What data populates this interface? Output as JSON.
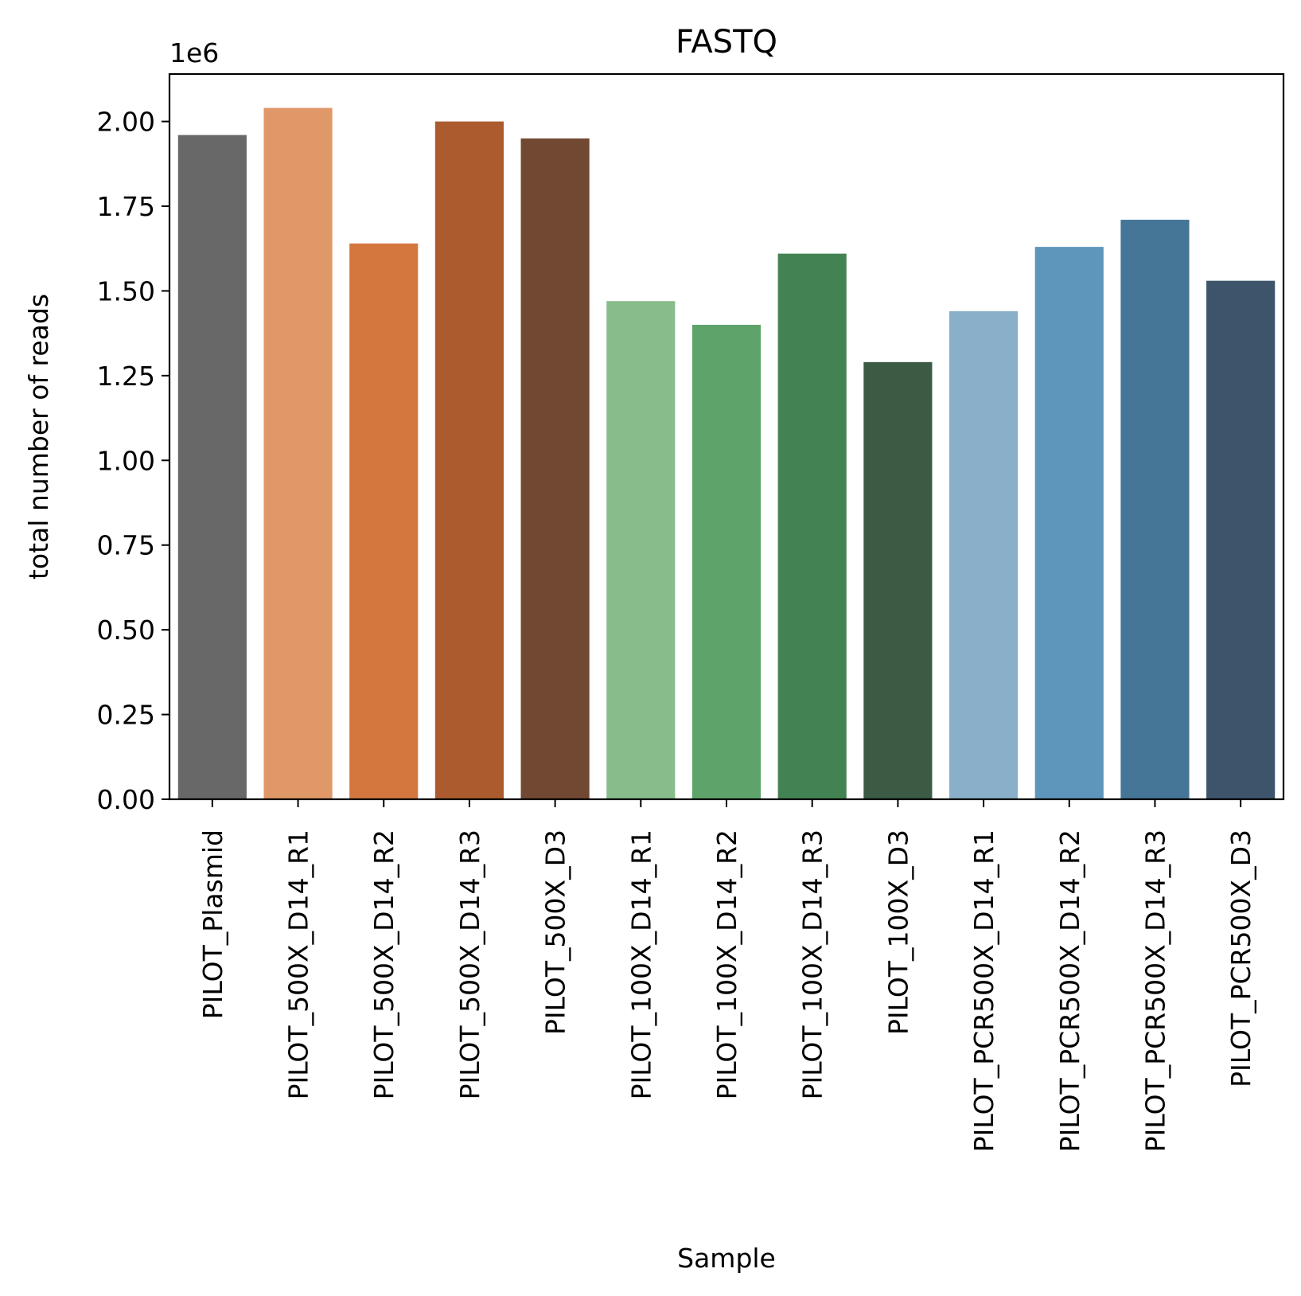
{
  "chart_data": {
    "type": "bar",
    "title": "FASTQ",
    "xlabel": "Sample",
    "ylabel": "total number of reads",
    "offset_text": "1e6",
    "ylim": [
      0,
      2.14
    ],
    "yticks": [
      "0.00",
      "0.25",
      "0.50",
      "0.75",
      "1.00",
      "1.25",
      "1.50",
      "1.75",
      "2.00"
    ],
    "ytick_values": [
      0,
      0.25,
      0.5,
      0.75,
      1.0,
      1.25,
      1.5,
      1.75,
      2.0
    ],
    "grid": false,
    "categories": [
      "PILOT_Plasmid",
      "PILOT_500X_D14_R1",
      "PILOT_500X_D14_R2",
      "PILOT_500X_D14_R3",
      "PILOT_500X_D3",
      "PILOT_100X_D14_R1",
      "PILOT_100X_D14_R2",
      "PILOT_100X_D14_R3",
      "PILOT_100X_D3",
      "PILOT_PCR500X_D14_R1",
      "PILOT_PCR500X_D14_R2",
      "PILOT_PCR500X_D14_R3",
      "PILOT_PCR500X_D3"
    ],
    "values": [
      1.96,
      2.04,
      1.64,
      2.0,
      1.95,
      1.47,
      1.4,
      1.61,
      1.29,
      1.44,
      1.63,
      1.71,
      1.53
    ],
    "colors": [
      "#686868",
      "#e09868",
      "#d4773f",
      "#ab5b2d",
      "#714831",
      "#88bc8a",
      "#5ea46a",
      "#438252",
      "#3c5b44",
      "#8aafc8",
      "#5e95bb",
      "#457597",
      "#3d546b"
    ]
  }
}
